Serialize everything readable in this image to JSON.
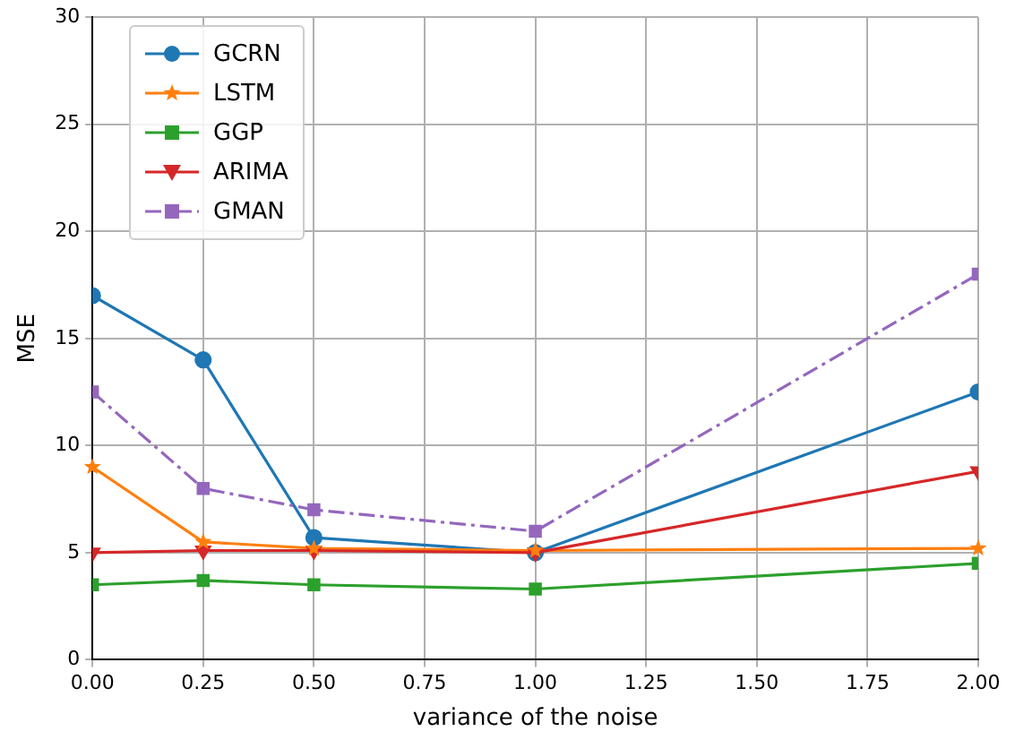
{
  "chart_data": {
    "type": "line",
    "xlabel": "variance of the noise",
    "ylabel": "MSE",
    "x": [
      0,
      0.25,
      0.5,
      1.0,
      2.0
    ],
    "xlim": [
      0,
      2
    ],
    "xticks": [
      {
        "value": 0,
        "label": "0.00"
      },
      {
        "value": 0.25,
        "label": "0.25"
      },
      {
        "value": 0.5,
        "label": "0.50"
      },
      {
        "value": 0.75,
        "label": "0.75"
      },
      {
        "value": 1,
        "label": "1.00"
      },
      {
        "value": 1.25,
        "label": "1.25"
      },
      {
        "value": 1.5,
        "label": "1.50"
      },
      {
        "value": 1.75,
        "label": "1.75"
      },
      {
        "value": 2,
        "label": "2.00"
      }
    ],
    "ylim": [
      0,
      30
    ],
    "yticks": [
      0,
      5,
      10,
      15,
      20,
      25,
      30
    ],
    "grid": true,
    "legend": "top left",
    "series": [
      {
        "name": "GCRN",
        "color": "#1f77b4",
        "marker": "circle",
        "line_style": "solid",
        "values": [
          17.0,
          14.0,
          5.7,
          5.0,
          12.5
        ]
      },
      {
        "name": "LSTM",
        "color": "#ff7f0e",
        "marker": "star",
        "line_style": "solid",
        "values": [
          9.0,
          5.5,
          5.2,
          5.1,
          5.2
        ]
      },
      {
        "name": "GGP",
        "color": "#2ca02c",
        "marker": "square",
        "line_style": "solid",
        "values": [
          3.5,
          3.7,
          3.5,
          3.3,
          4.5
        ]
      },
      {
        "name": "ARIMA",
        "color": "#d62728",
        "marker": "triangle",
        "line_style": "solid",
        "values": [
          5.0,
          5.1,
          5.1,
          5.0,
          8.8
        ]
      },
      {
        "name": "GMAN",
        "color": "#9467bd",
        "marker": "square",
        "line_style": "dashed",
        "values": [
          12.5,
          8.0,
          7.0,
          6.0,
          18.0
        ]
      }
    ]
  }
}
